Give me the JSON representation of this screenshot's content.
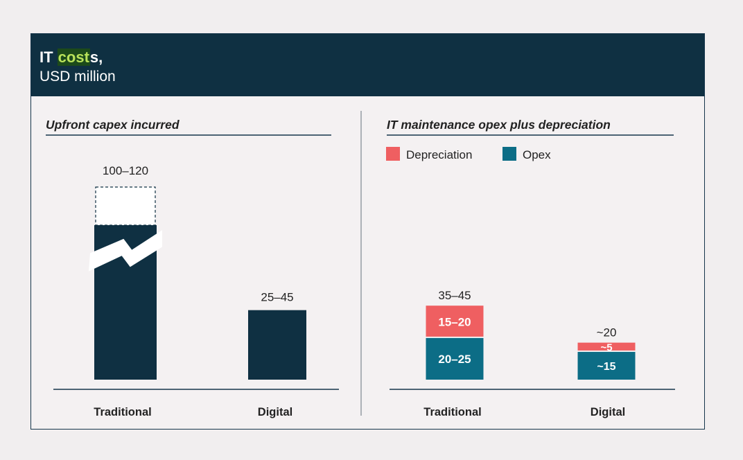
{
  "header": {
    "title_pre": "IT ",
    "title_highlight": "cost",
    "title_post": "s,",
    "subtitle": "USD million"
  },
  "colors": {
    "header_bg": "#0f3042",
    "dark_navy": "#0f3042",
    "depreciation": "#ef5f61",
    "opex": "#0c6d86",
    "highlight": "#b9e25a"
  },
  "chart_data": [
    {
      "type": "bar",
      "title": "Upfront capex incurred",
      "categories": [
        "Traditional",
        "Digital"
      ],
      "values": [
        [
          100,
          120
        ],
        [
          25,
          45
        ]
      ],
      "data_labels": [
        "100–120",
        "25–45"
      ],
      "axis_break": "Traditional bar is broken (not to scale)"
    },
    {
      "type": "bar",
      "stacked": true,
      "title": "IT maintenance opex plus depreciation",
      "categories": [
        "Traditional",
        "Digital"
      ],
      "legend": [
        "Depreciation",
        "Opex"
      ],
      "legend_position": "top-left",
      "series": [
        {
          "name": "Opex",
          "values": [
            22.5,
            15
          ],
          "labels": [
            "20–25",
            "~15"
          ]
        },
        {
          "name": "Depreciation",
          "values": [
            17.5,
            5
          ],
          "labels": [
            "15–20",
            "~5"
          ]
        }
      ],
      "totals": [
        "35–45",
        "~20"
      ]
    }
  ]
}
